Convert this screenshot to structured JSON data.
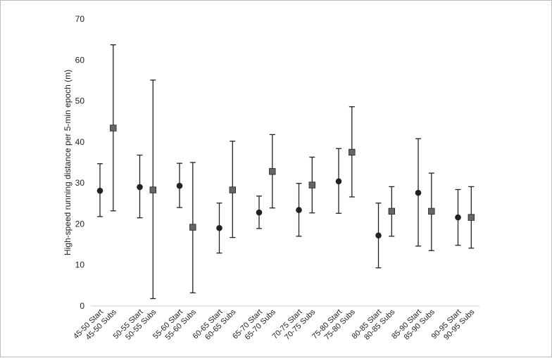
{
  "chart_data": {
    "type": "scatter",
    "title": "",
    "xlabel": "",
    "ylabel": "High-speed running distance per 5-min epoch (m)",
    "ylim": [
      0,
      70
    ],
    "yticks": [
      0,
      10,
      20,
      30,
      40,
      50,
      60,
      70
    ],
    "grid": false,
    "legend": "none",
    "categories": [
      "45-50 Start",
      "45-50 Subs",
      "50-55 Start",
      "50-55 Subs",
      "55-60 Start",
      "55-60 Subs",
      "60-65 Start",
      "60-65 Subs",
      "65-70 Start",
      "65-70 Subs",
      "70-75 Start",
      "70-75 Subs",
      "75-80 Start",
      "75-80 Subs",
      "80-85 Start",
      "80-85 Subs",
      "85-90 Start",
      "85-90 Subs",
      "90-95 Start",
      "90-95 Subs"
    ],
    "series": [
      {
        "name": "Start",
        "marker": "circle",
        "color": "#222222",
        "values": [
          28.1,
          29.0,
          29.3,
          19.0,
          22.8,
          23.4,
          30.4,
          17.2,
          27.6,
          21.6
        ],
        "lower": [
          21.8,
          21.5,
          24.0,
          12.9,
          18.9,
          17.0,
          22.6,
          9.3,
          14.6,
          14.8
        ],
        "upper": [
          34.7,
          36.8,
          34.8,
          25.1,
          26.8,
          29.9,
          38.4,
          25.1,
          40.8,
          28.4
        ]
      },
      {
        "name": "Subs",
        "marker": "square",
        "color": "#666666",
        "values": [
          43.4,
          28.3,
          19.2,
          28.3,
          32.8,
          29.5,
          37.5,
          23.1,
          23.1,
          21.6
        ],
        "lower": [
          23.2,
          1.8,
          3.2,
          16.7,
          23.9,
          22.7,
          26.6,
          17.0,
          13.5,
          14.1
        ],
        "upper": [
          63.7,
          55.1,
          35.0,
          40.2,
          41.8,
          36.3,
          48.6,
          29.1,
          32.4,
          29.1
        ]
      }
    ]
  }
}
